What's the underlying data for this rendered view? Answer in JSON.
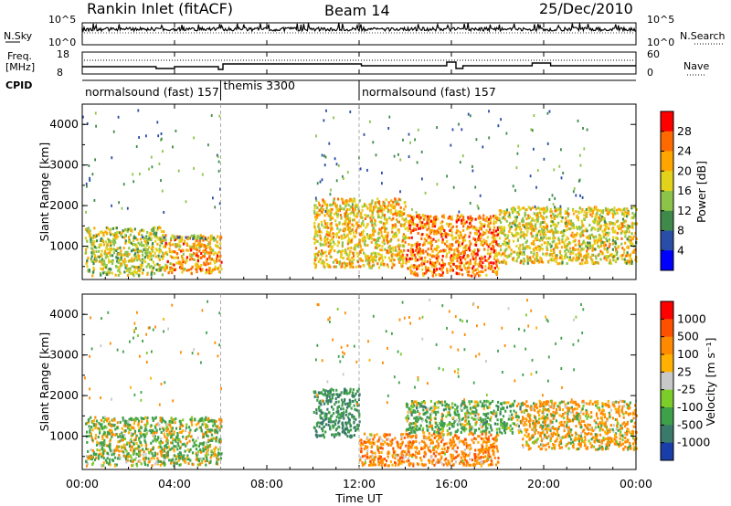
{
  "header": {
    "station": "Rankin Inlet (fitACF)",
    "beam": "Beam 14",
    "date": "25/Dec/2010"
  },
  "noise_panel": {
    "left_label": "N.Sky",
    "right_label": "N.Search",
    "left_ticks": [
      "10^5",
      "10^0"
    ],
    "right_ticks": [
      "10^5",
      "10^0"
    ]
  },
  "freq_panel": {
    "left_label_1": "Freq.",
    "left_label_2": "[MHz]",
    "right_label": "Nave",
    "left_ticks": [
      "18",
      "8"
    ],
    "right_ticks": [
      "60",
      "0"
    ]
  },
  "cpid_panel": {
    "label": "CPID",
    "segments": [
      {
        "start_hour": 0,
        "end_hour": 6.0,
        "text": "normalsound (fast) 157"
      },
      {
        "start_hour": 6.0,
        "end_hour": 12.0,
        "text": "themis 3300"
      },
      {
        "start_hour": 12.0,
        "end_hour": 24,
        "text": "normalsound (fast) 157"
      }
    ]
  },
  "time_axis": {
    "label": "Time UT",
    "ticks": [
      "00:00",
      "04:00",
      "08:00",
      "12:00",
      "16:00",
      "20:00",
      "00:00"
    ]
  },
  "power_panel": {
    "ylabel": "Slant Range [km]",
    "yticks": [
      "1000",
      "2000",
      "3000",
      "4000"
    ],
    "colorbar_label": "Power [dB]",
    "colorbar_ticks": [
      "4",
      "8",
      "12",
      "16",
      "20",
      "24",
      "28"
    ],
    "colors": [
      "#0000ff",
      "#2a4da6",
      "#3f8a4a",
      "#8cc44a",
      "#e2d31a",
      "#ffa500",
      "#ff6a00",
      "#ff0000"
    ]
  },
  "velocity_panel": {
    "ylabel": "Slant Range [km]",
    "yticks": [
      "1000",
      "2000",
      "3000",
      "4000"
    ],
    "colorbar_label": "Velocity [m s⁻¹]",
    "colorbar_ticks": [
      "1000",
      "500",
      "100",
      "25",
      "-25",
      "-100",
      "-500",
      "-1000"
    ],
    "colors": [
      "#1a3ea8",
      "#3a7a6a",
      "#3fa04a",
      "#7ccc2a",
      "#c8c8c8",
      "#ffb000",
      "#ff8a00",
      "#ff5000",
      "#ff0000"
    ]
  },
  "chart_data": {
    "type": "heatmap",
    "x_axis": {
      "label": "Time UT",
      "range_hours": [
        0,
        24
      ]
    },
    "y_axis": {
      "label": "Slant Range [km]",
      "range_km": [
        180,
        4500
      ]
    },
    "panels": [
      {
        "name": "Power [dB]",
        "color_range": [
          0,
          30
        ],
        "echo_regions": [
          {
            "t_start": 0.1,
            "t_end": 3.5,
            "range_start": 300,
            "range_end": 1500,
            "typical_value": 16
          },
          {
            "t_start": 3.5,
            "t_end": 6.0,
            "range_start": 350,
            "range_end": 1300,
            "typical_value": 22
          },
          {
            "t_start": 2.5,
            "t_end": 5.8,
            "range_start": 1200,
            "range_end": 1300,
            "typical_value": 12
          },
          {
            "t_start": 10.0,
            "t_end": 14.0,
            "range_start": 500,
            "range_end": 2200,
            "typical_value": 20
          },
          {
            "t_start": 14.0,
            "t_end": 18.0,
            "range_start": 300,
            "range_end": 1800,
            "typical_value": 24
          },
          {
            "t_start": 18.0,
            "t_end": 24.0,
            "range_start": 600,
            "range_end": 2000,
            "typical_value": 18
          }
        ]
      },
      {
        "name": "Velocity [m s-1]",
        "color_range": [
          -1000,
          1000
        ],
        "echo_regions": [
          {
            "t_start": 0.1,
            "t_end": 6.0,
            "range_start": 300,
            "range_end": 1500,
            "typical_value": 100
          },
          {
            "t_start": 10.0,
            "t_end": 12.0,
            "range_start": 1000,
            "range_end": 2200,
            "typical_value": 500
          },
          {
            "t_start": 12.0,
            "t_end": 18.0,
            "range_start": 300,
            "range_end": 1100,
            "typical_value": -300
          },
          {
            "t_start": 14.0,
            "t_end": 19.0,
            "range_start": 1100,
            "range_end": 1900,
            "typical_value": 200
          },
          {
            "t_start": 19.0,
            "t_end": 24.0,
            "range_start": 700,
            "range_end": 1900,
            "typical_value": -150
          }
        ]
      }
    ]
  }
}
